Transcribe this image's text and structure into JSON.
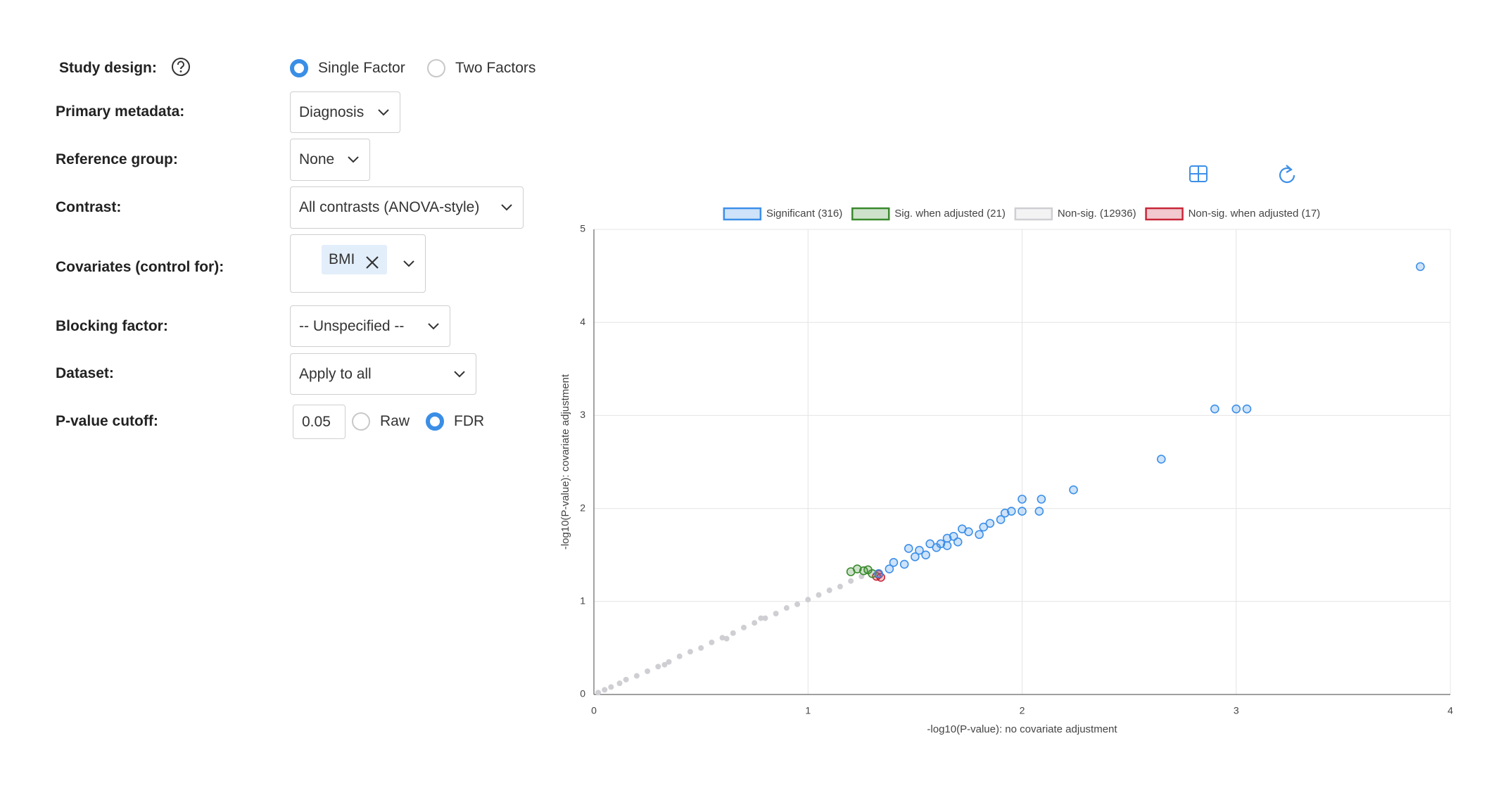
{
  "form": {
    "study_design": {
      "label": "Study design:",
      "options": [
        "Single Factor",
        "Two Factors"
      ]
    },
    "primary_metadata": {
      "label": "Primary metadata:",
      "value": "Diagnosis"
    },
    "reference_group": {
      "label": "Reference group:",
      "value": "None"
    },
    "contrast": {
      "label": "Contrast:",
      "value": "All contrasts (ANOVA-style)"
    },
    "covariates": {
      "label": "Covariates (control for):",
      "tags": [
        "BMI"
      ]
    },
    "blocking_factor": {
      "label": "Blocking factor:",
      "value": "-- Unspecified --"
    },
    "dataset": {
      "label": "Dataset:",
      "value": "Apply to all"
    },
    "p_value_cutoff": {
      "label": "P-value cutoff:",
      "value": "0.05",
      "options": [
        "Raw",
        "FDR"
      ]
    }
  },
  "chart_data": {
    "type": "scatter",
    "xlabel": "-log10(P-value): no covariate adjustment",
    "ylabel": "-log10(P-value): covariate adjustment",
    "xlim": [
      0,
      4
    ],
    "ylim": [
      0,
      5
    ],
    "xticks": [
      0,
      1,
      2,
      3,
      4
    ],
    "yticks": [
      0,
      1,
      2,
      3,
      4,
      5
    ],
    "grid": true,
    "legend": "top",
    "series": [
      {
        "name": "Significant (316)",
        "color": "#3d8fe8",
        "x": [
          1.33,
          1.38,
          1.4,
          1.45,
          1.5,
          1.52,
          1.55,
          1.6,
          1.62,
          1.65,
          1.68,
          1.7,
          1.75,
          1.8,
          1.82,
          1.85,
          1.9,
          1.92,
          1.95,
          2.0,
          2.0,
          2.08,
          2.09,
          2.24,
          2.65,
          2.9,
          3.0,
          3.05,
          3.86,
          1.47,
          1.57,
          1.72,
          1.65
        ],
        "values": [
          1.3,
          1.35,
          1.42,
          1.4,
          1.48,
          1.55,
          1.5,
          1.58,
          1.62,
          1.6,
          1.7,
          1.64,
          1.75,
          1.72,
          1.8,
          1.84,
          1.88,
          1.95,
          1.97,
          1.97,
          2.1,
          1.97,
          2.1,
          2.2,
          2.53,
          3.07,
          3.07,
          3.07,
          4.6,
          1.57,
          1.62,
          1.78,
          1.68
        ]
      },
      {
        "name": "Sig. when adjusted (21)",
        "color": "#3b8a2e",
        "x": [
          1.2,
          1.23,
          1.26,
          1.28,
          1.3
        ],
        "values": [
          1.32,
          1.35,
          1.33,
          1.34,
          1.3
        ]
      },
      {
        "name": "Non-sig. (12936)",
        "color": "#cfcfd3",
        "x": [
          0.02,
          0.05,
          0.08,
          0.12,
          0.15,
          0.2,
          0.25,
          0.3,
          0.35,
          0.4,
          0.45,
          0.5,
          0.55,
          0.6,
          0.65,
          0.7,
          0.75,
          0.8,
          0.85,
          0.9,
          0.95,
          1.0,
          1.05,
          1.1,
          1.15,
          1.2,
          1.25,
          0.62,
          0.78,
          0.33
        ],
        "values": [
          0.02,
          0.05,
          0.08,
          0.12,
          0.16,
          0.2,
          0.25,
          0.3,
          0.35,
          0.41,
          0.46,
          0.5,
          0.56,
          0.61,
          0.66,
          0.72,
          0.77,
          0.82,
          0.87,
          0.93,
          0.97,
          1.02,
          1.07,
          1.12,
          1.16,
          1.22,
          1.27,
          0.6,
          0.82,
          0.32
        ]
      },
      {
        "name": "Non-sig. when adjusted (17)",
        "color": "#c8283a",
        "x": [
          1.32,
          1.34,
          1.33
        ],
        "values": [
          1.27,
          1.26,
          1.29
        ]
      }
    ]
  }
}
